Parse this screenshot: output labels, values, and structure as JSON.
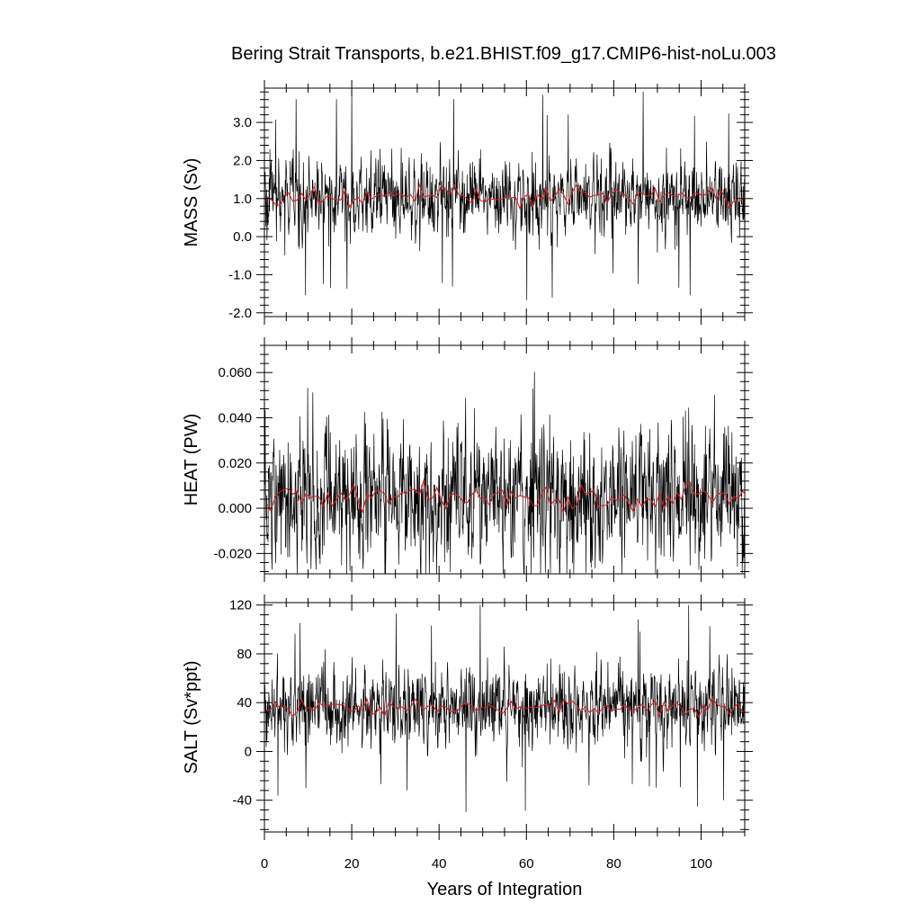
{
  "chart_data": {
    "type": "line",
    "title": "Bering Strait Transports, b.e21.BHIST.f09_g17.CMIP6-hist-noLu.003",
    "xlabel": "Years of Integration",
    "xlim": [
      0,
      110
    ],
    "xticks": [
      0,
      20,
      40,
      60,
      80,
      100
    ],
    "xtick_labels": [
      "0",
      "20",
      "40",
      "60",
      "80",
      "100"
    ],
    "grid": false,
    "colors": {
      "monthly": "#000000",
      "annual": "#d62020"
    },
    "panels": [
      {
        "id": "mass",
        "ylabel": "MASS (Sv)",
        "ylim": [
          -2.1,
          3.9
        ],
        "yticks": [
          -2.0,
          -1.0,
          0.0,
          1.0,
          2.0,
          3.0
        ],
        "ytick_labels": [
          "-2.0",
          "-1.0",
          "0.0",
          "1.0",
          "2.0",
          "3.0"
        ],
        "series": [
          {
            "kind": "monthly",
            "mean": 1.05,
            "std": 0.55,
            "min": -2.1,
            "max": 3.9
          },
          {
            "kind": "annual",
            "mean": 1.05,
            "std": 0.14
          }
        ]
      },
      {
        "id": "heat",
        "ylabel": "HEAT (PW)",
        "ylim": [
          -0.029,
          0.072
        ],
        "yticks": [
          -0.02,
          0.0,
          0.02,
          0.04,
          0.06
        ],
        "ytick_labels": [
          "-0.020",
          "0.000",
          "0.020",
          "0.040",
          "0.060"
        ],
        "series": [
          {
            "kind": "monthly",
            "mean": 0.005,
            "std": 0.016,
            "min": -0.029,
            "max": 0.072
          },
          {
            "kind": "annual",
            "mean": 0.005,
            "std": 0.003
          }
        ]
      },
      {
        "id": "salt",
        "ylabel": "SALT (Sv*ppt)",
        "ylim": [
          -66,
          122
        ],
        "yticks": [
          -40,
          0,
          40,
          80,
          120
        ],
        "ytick_labels": [
          "-40",
          "0",
          "40",
          "80",
          "120"
        ],
        "series": [
          {
            "kind": "monthly",
            "mean": 36,
            "std": 17,
            "min": -66,
            "max": 122
          },
          {
            "kind": "annual",
            "mean": 36,
            "std": 4
          }
        ]
      }
    ]
  }
}
